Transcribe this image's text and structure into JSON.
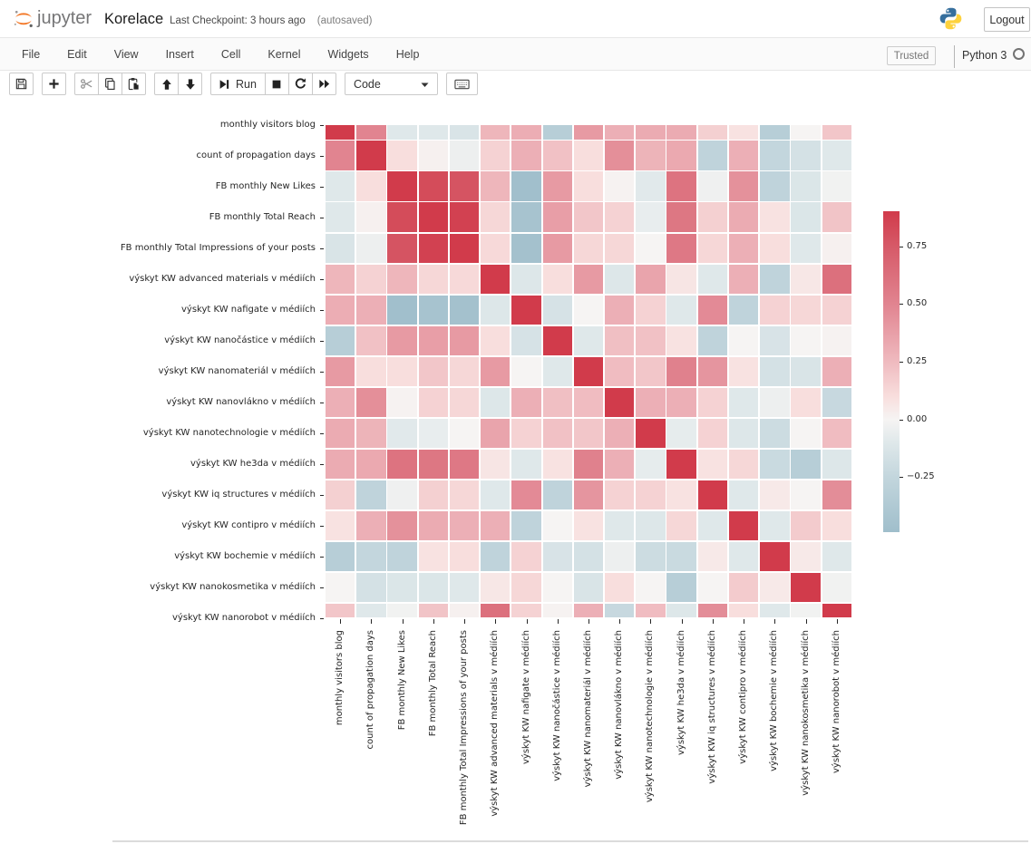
{
  "header": {
    "logo_text": "jupyter",
    "title": "Korelace",
    "checkpoint": "Last Checkpoint: 3 hours ago",
    "autosaved": "(autosaved)",
    "logout_label": "Logout"
  },
  "menubar": {
    "items": [
      "File",
      "Edit",
      "View",
      "Insert",
      "Cell",
      "Kernel",
      "Widgets",
      "Help"
    ],
    "trusted_label": "Trusted",
    "kernel_name": "Python 3"
  },
  "toolbar": {
    "run_label": "Run",
    "cell_type_value": "Code"
  },
  "chart_data": {
    "type": "heatmap",
    "labels": [
      "monthly visitors blog",
      "count of propagation days",
      "FB monthly New Likes",
      "FB monthly Total Reach",
      "FB monthly Total Impressions of your posts",
      "výskyt KW advanced materials v médiích",
      "výskyt KW nafigate v médiích",
      "výskyt KW nanočástice v médiích",
      "výskyt KW nanomateriál v médiích",
      "výskyt KW nanovlákno v médiích",
      "výskyt KW nanotechnologie v médiích",
      "výskyt KW he3da v médiích",
      "výskyt KW iq structures v médiích",
      "výskyt KW contipro v médiích",
      "výskyt KW bochemie v médiích",
      "výskyt KW nanokosmetika v médiích",
      "výskyt KW nanorobot v médiích"
    ],
    "matrix": [
      [
        1.0,
        0.5,
        -0.1,
        -0.1,
        -0.13,
        0.27,
        0.31,
        -0.33,
        0.4,
        0.3,
        0.32,
        0.32,
        0.16,
        0.08,
        -0.33,
        0.0,
        0.2
      ],
      [
        0.5,
        1.0,
        0.1,
        0.02,
        -0.04,
        0.15,
        0.3,
        0.22,
        0.1,
        0.45,
        0.28,
        0.33,
        -0.28,
        0.3,
        -0.25,
        -0.16,
        -0.1
      ],
      [
        -0.1,
        0.1,
        1.0,
        0.82,
        0.78,
        0.27,
        -0.48,
        0.4,
        0.1,
        0.01,
        -0.09,
        0.6,
        -0.03,
        0.44,
        -0.28,
        -0.12,
        -0.02
      ],
      [
        -0.1,
        0.02,
        0.82,
        1.0,
        0.87,
        0.13,
        -0.44,
        0.38,
        0.2,
        0.15,
        -0.06,
        0.58,
        0.16,
        0.32,
        0.08,
        -0.12,
        0.21
      ],
      [
        -0.13,
        -0.04,
        0.78,
        0.87,
        1.0,
        0.12,
        -0.46,
        0.4,
        0.13,
        0.13,
        0.0,
        0.57,
        0.13,
        0.3,
        0.1,
        -0.1,
        0.02
      ],
      [
        0.27,
        0.15,
        0.27,
        0.13,
        0.12,
        1.0,
        -0.11,
        0.1,
        0.4,
        -0.11,
        0.35,
        0.07,
        -0.1,
        0.3,
        -0.28,
        0.06,
        0.62
      ],
      [
        0.31,
        0.3,
        -0.48,
        -0.44,
        -0.46,
        -0.11,
        1.0,
        -0.15,
        0.0,
        0.3,
        0.15,
        -0.1,
        0.47,
        -0.28,
        0.15,
        0.13,
        0.15
      ],
      [
        -0.33,
        0.22,
        0.4,
        0.38,
        0.4,
        0.1,
        -0.15,
        1.0,
        -0.1,
        0.23,
        0.22,
        0.08,
        -0.28,
        0.0,
        -0.14,
        0.0,
        0.01
      ],
      [
        0.4,
        0.1,
        0.1,
        0.2,
        0.13,
        0.4,
        0.0,
        -0.1,
        1.0,
        0.24,
        0.2,
        0.52,
        0.42,
        0.08,
        -0.16,
        -0.13,
        0.3
      ],
      [
        0.3,
        0.45,
        0.01,
        0.15,
        0.13,
        -0.11,
        0.3,
        0.23,
        0.24,
        1.0,
        0.3,
        0.3,
        0.15,
        -0.1,
        -0.04,
        0.1,
        -0.23
      ],
      [
        0.32,
        0.28,
        -0.09,
        -0.06,
        0.0,
        0.35,
        0.15,
        0.22,
        0.2,
        0.3,
        1.0,
        -0.07,
        0.15,
        -0.11,
        -0.2,
        0.0,
        0.24
      ],
      [
        0.32,
        0.33,
        0.6,
        0.58,
        0.57,
        0.07,
        -0.1,
        0.08,
        0.52,
        0.3,
        -0.07,
        1.0,
        0.08,
        0.13,
        -0.22,
        -0.33,
        -0.11
      ],
      [
        0.16,
        -0.28,
        -0.03,
        0.16,
        0.13,
        -0.1,
        0.47,
        -0.28,
        0.42,
        0.15,
        0.15,
        0.08,
        1.0,
        -0.1,
        0.05,
        0.0,
        0.46
      ],
      [
        0.08,
        0.3,
        0.44,
        0.32,
        0.3,
        0.3,
        -0.28,
        0.0,
        0.08,
        -0.1,
        -0.11,
        0.13,
        -0.1,
        1.0,
        -0.1,
        0.18,
        0.1
      ],
      [
        -0.33,
        -0.25,
        -0.28,
        0.08,
        0.1,
        -0.28,
        0.15,
        -0.14,
        -0.16,
        -0.04,
        -0.2,
        -0.22,
        0.05,
        -0.1,
        1.0,
        0.05,
        -0.1
      ],
      [
        0.0,
        -0.16,
        -0.12,
        -0.12,
        -0.1,
        0.06,
        0.13,
        0.0,
        -0.13,
        0.1,
        0.0,
        -0.33,
        0.0,
        0.18,
        0.05,
        1.0,
        -0.02
      ],
      [
        0.2,
        -0.1,
        -0.02,
        0.21,
        0.02,
        0.62,
        0.15,
        0.01,
        0.3,
        -0.23,
        0.24,
        -0.11,
        0.46,
        0.1,
        -0.1,
        -0.02,
        1.0
      ]
    ],
    "colorbar": {
      "tick_labels": [
        "0.75",
        "0.50",
        "0.25",
        "0.00",
        "−0.25"
      ],
      "tick_values": [
        0.75,
        0.5,
        0.25,
        0.0,
        -0.25
      ],
      "display_max": 0.903,
      "display_min": -0.489
    },
    "colormap_stops": [
      [
        -0.49,
        "#9fbecb"
      ],
      [
        -0.25,
        "#c3d6dd"
      ],
      [
        -0.1,
        "#dfe8ea"
      ],
      [
        0.0,
        "#f6f4f3"
      ],
      [
        0.1,
        "#f8dedd"
      ],
      [
        0.25,
        "#efbabf"
      ],
      [
        0.5,
        "#e18490"
      ],
      [
        0.75,
        "#d65a68"
      ],
      [
        0.9,
        "#d13b4b"
      ]
    ]
  }
}
